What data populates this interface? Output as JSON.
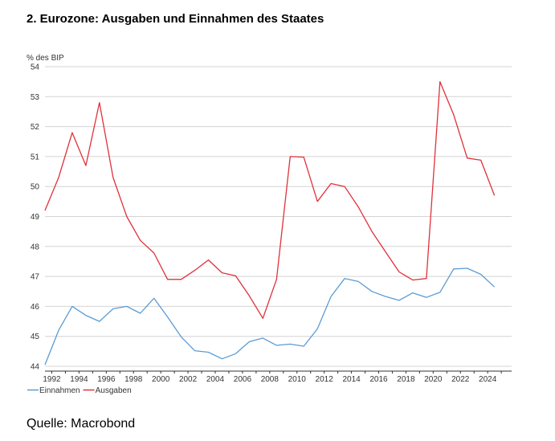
{
  "header": {
    "title": "2. Eurozone: Ausgaben und Einnahmen des Staates"
  },
  "footer": {
    "source": "Quelle: Macrobond"
  },
  "chart_data": {
    "type": "line",
    "title": "2. Eurozone: Ausgaben und Einnahmen des Staates",
    "ylabel": "% des BIP",
    "xlabel": "",
    "ylim": [
      44,
      54
    ],
    "xlim": [
      1991.5,
      2025.7
    ],
    "yticks": [
      44,
      45,
      46,
      47,
      48,
      49,
      50,
      51,
      52,
      53,
      54
    ],
    "xticks": [
      1992,
      1994,
      1996,
      1998,
      2000,
      2002,
      2004,
      2006,
      2008,
      2010,
      2012,
      2014,
      2016,
      2018,
      2020,
      2022,
      2024
    ],
    "grid": true,
    "legend": "bottom-left",
    "x": [
      1991.5,
      1992.5,
      1993.5,
      1994.5,
      1995.5,
      1996.5,
      1997.5,
      1998.5,
      1999.5,
      2000.5,
      2001.5,
      2002.5,
      2003.5,
      2004.5,
      2005.5,
      2006.5,
      2007.5,
      2008.5,
      2009.5,
      2010.5,
      2011.5,
      2012.5,
      2013.5,
      2014.5,
      2015.5,
      2016.5,
      2017.5,
      2018.5,
      2019.5,
      2020.5,
      2021.5,
      2022.5,
      2023.5,
      2024.5
    ],
    "series": [
      {
        "name": "Einnahmen",
        "color": "#5b9bd5",
        "values": [
          44.05,
          45.2,
          46.0,
          45.7,
          45.5,
          45.92,
          46.0,
          45.77,
          46.27,
          45.65,
          44.98,
          44.52,
          44.47,
          44.25,
          44.42,
          44.82,
          44.94,
          44.7,
          44.74,
          44.67,
          45.25,
          46.33,
          46.93,
          46.83,
          46.5,
          46.33,
          46.2,
          46.45,
          46.3,
          46.47,
          47.25,
          47.27,
          47.07,
          46.65
        ]
      },
      {
        "name": "Ausgaben",
        "color": "#e0313a",
        "values": [
          49.2,
          50.3,
          51.8,
          50.7,
          52.8,
          50.3,
          49.0,
          48.2,
          47.78,
          46.9,
          46.9,
          47.2,
          47.55,
          47.12,
          47.02,
          46.35,
          45.6,
          46.9,
          51.0,
          50.98,
          49.5,
          50.1,
          50.0,
          49.32,
          48.5,
          47.82,
          47.15,
          46.88,
          46.93,
          53.5,
          52.4,
          50.95,
          50.88,
          49.7
        ]
      }
    ]
  }
}
